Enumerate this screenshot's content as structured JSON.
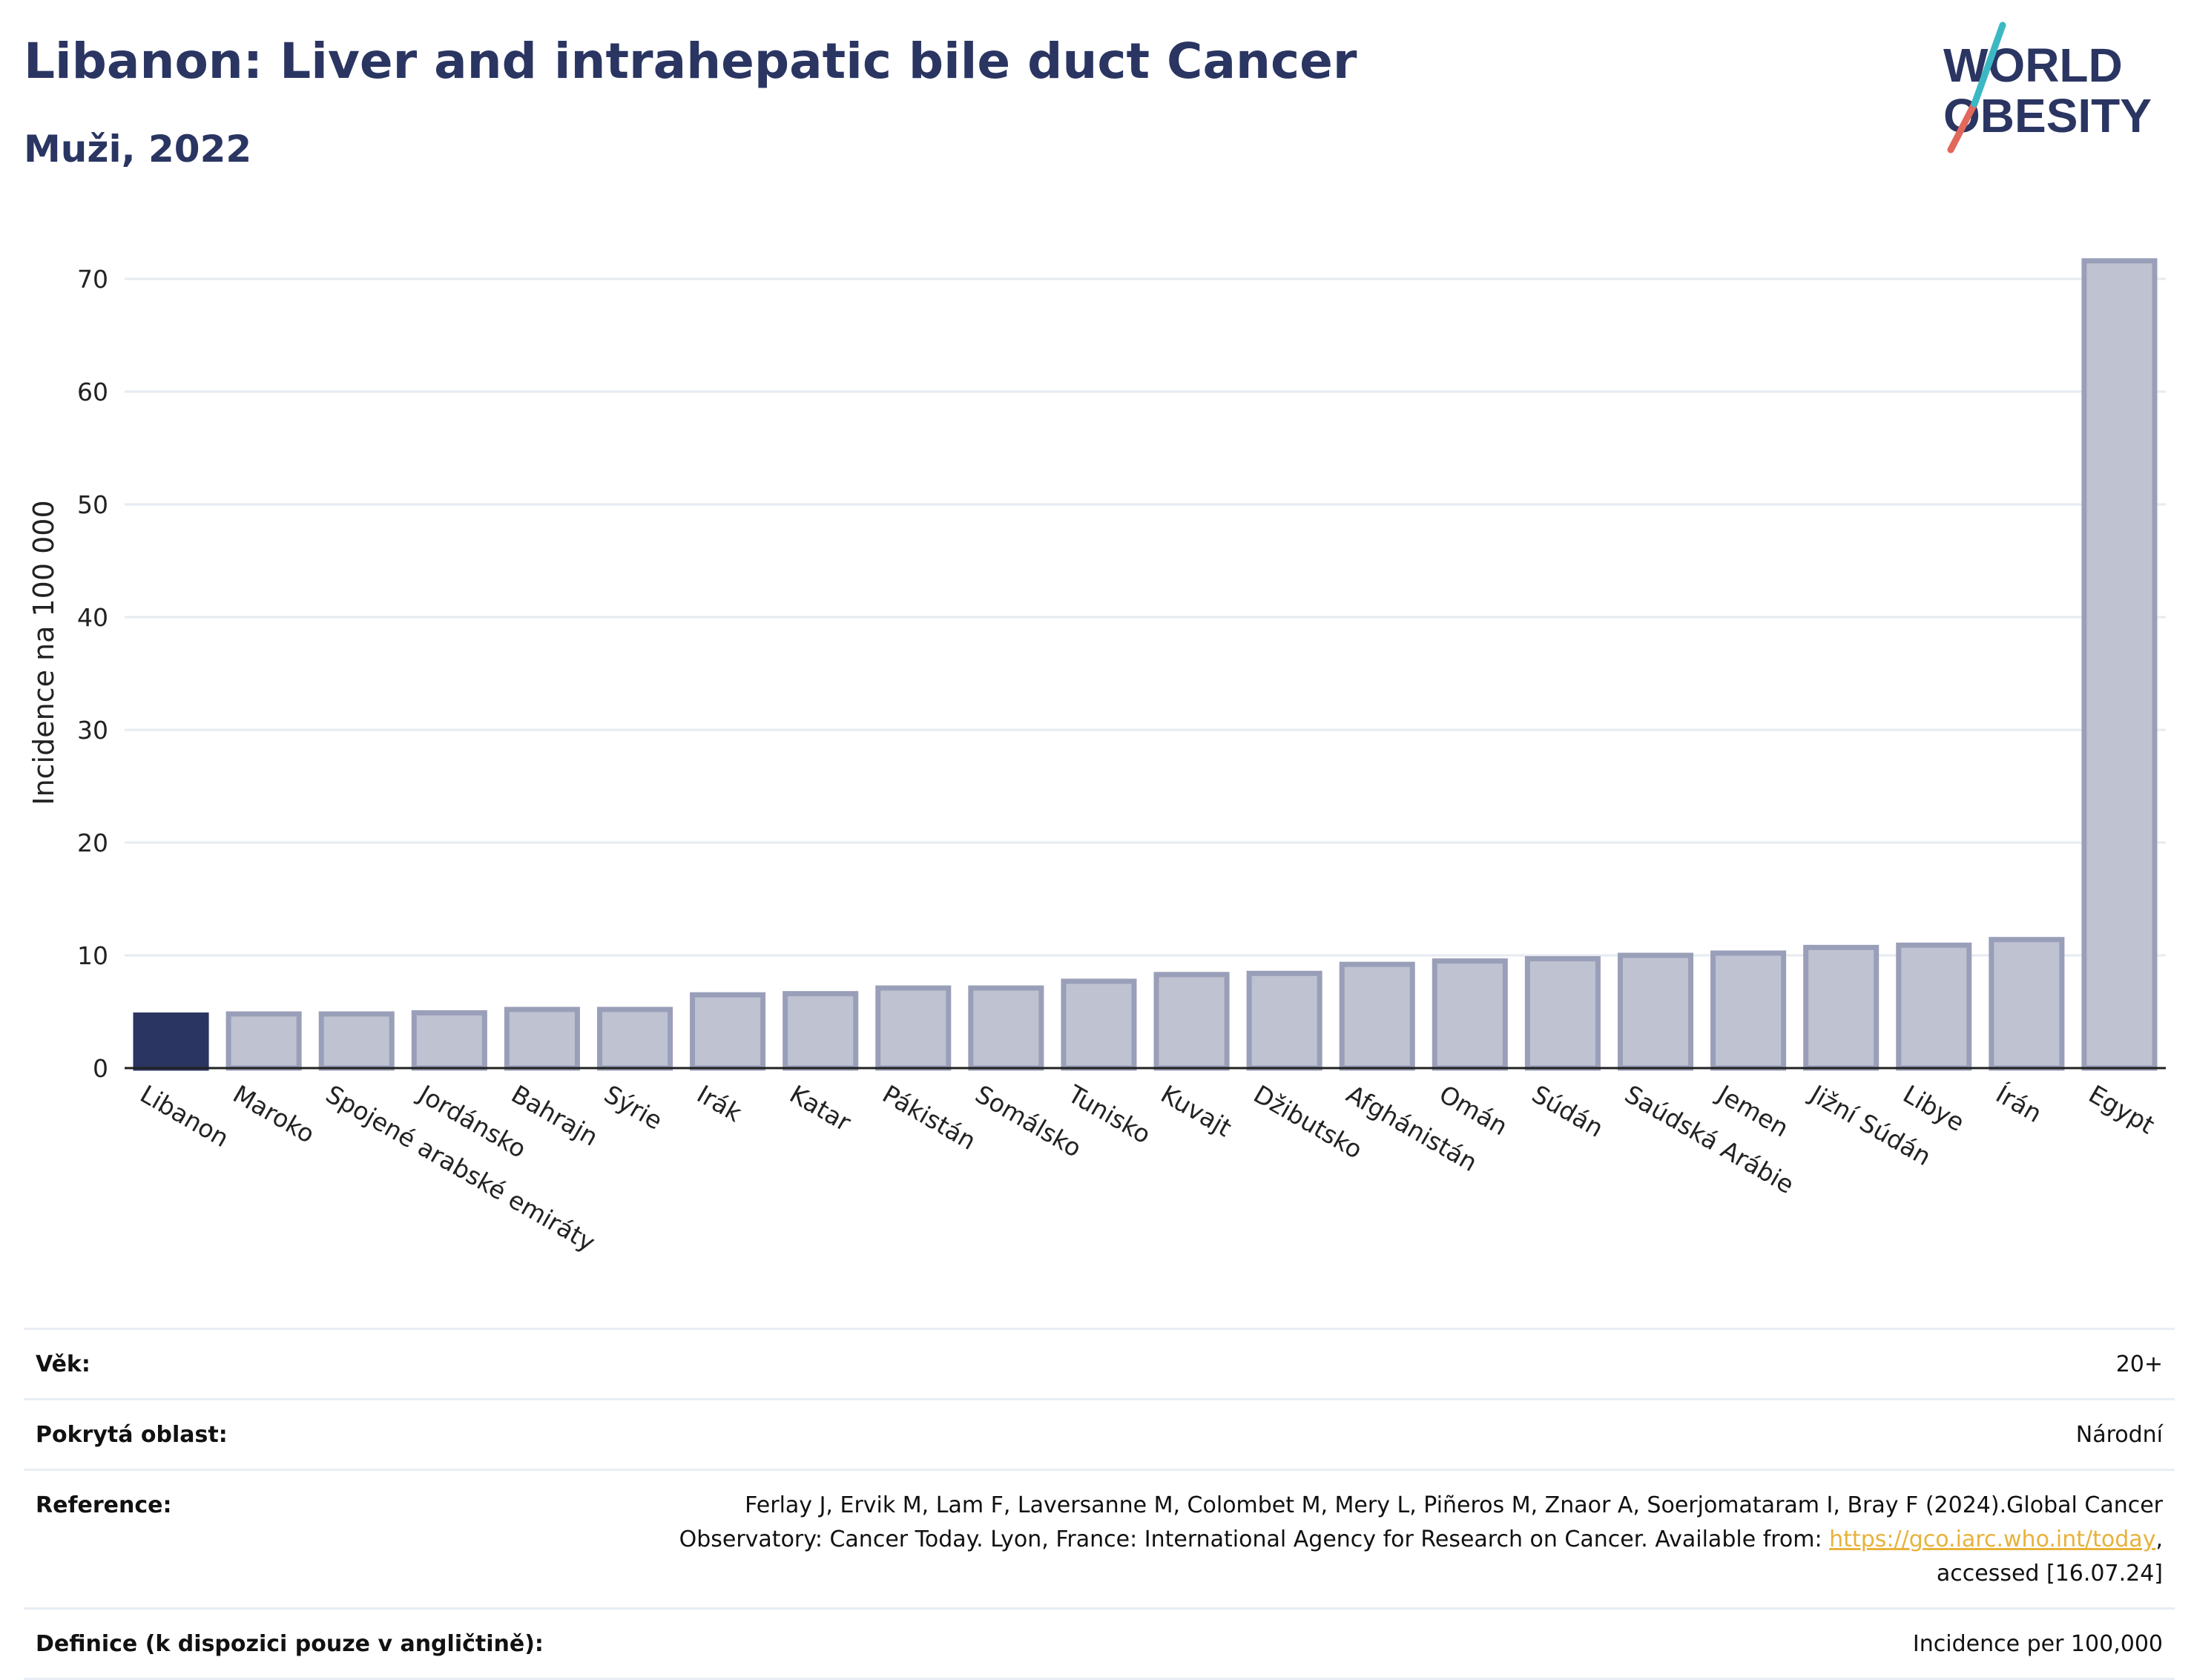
{
  "header": {
    "title": "Libanon: Liver and intrahepatic bile duct Cancer",
    "subtitle": "Muži, 2022"
  },
  "logo": {
    "line1": "WORLD",
    "line2": "OBESITY",
    "colors": {
      "text": "#2a3562",
      "slash_top": "#3bb8c3",
      "slash_bottom": "#e2685c"
    }
  },
  "chart_data": {
    "type": "bar",
    "title": "",
    "xlabel": "",
    "ylabel": "Incidence na 100 000",
    "ylim": [
      0,
      75
    ],
    "yticks": [
      0,
      10,
      20,
      30,
      40,
      50,
      60,
      70
    ],
    "grid": true,
    "highlight_category": "Libanon",
    "colors": {
      "highlight": "#2a3562",
      "bar": "#bfc2d1",
      "bar_edge": "#9a9fb9",
      "grid": "#e6ebf1"
    },
    "categories": [
      "Libanon",
      "Maroko",
      "Spojené arabské emiráty",
      "Jordánsko",
      "Bahrajn",
      "Sýrie",
      "Irák",
      "Katar",
      "Pákistán",
      "Somálsko",
      "Tunisko",
      "Kuvajt",
      "Džibutsko",
      "Afghánistán",
      "Omán",
      "Súdán",
      "Saúdská Arábie",
      "Jemen",
      "Jižní Súdán",
      "Libye",
      "Írán",
      "Egypt"
    ],
    "values": [
      4.7,
      4.8,
      4.8,
      4.9,
      5.2,
      5.2,
      6.5,
      6.6,
      7.1,
      7.1,
      7.7,
      8.3,
      8.4,
      9.2,
      9.5,
      9.7,
      10.0,
      10.2,
      10.7,
      10.9,
      11.4,
      71.6
    ]
  },
  "info": {
    "age_label": "Věk:",
    "age_value": "20+",
    "coverage_label": "Pokrytá oblast:",
    "coverage_value": "Národní",
    "reference_label": "Reference:",
    "reference_text_1": "Ferlay J, Ervik M, Lam F, Laversanne M, Colombet M, Mery L, Piñeros M, Znaor A, Soerjomataram I, Bray F (2024).Global Cancer Observatory: Cancer Today. Lyon, France: International Agency for Research on Cancer. Available from: ",
    "reference_link": "https://gco.iarc.who.int/today",
    "reference_text_2": ", accessed [16.07.24]",
    "definition_label": "Definice (k dispozici pouze v angličtině):",
    "definition_value": "Incidence per 100,000"
  }
}
